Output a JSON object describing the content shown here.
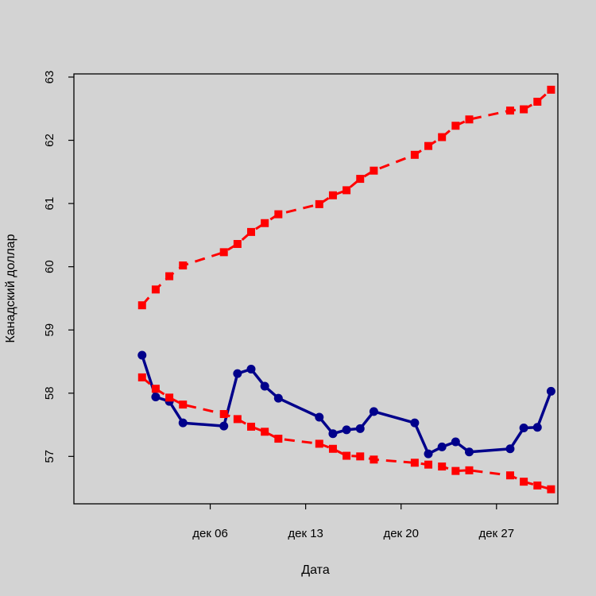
{
  "chart_data": {
    "type": "line",
    "xlabel": "Дата",
    "ylabel": "Канадский доллар",
    "x_ticks": [
      {
        "day": 6,
        "label": "дек 06"
      },
      {
        "day": 13,
        "label": "дек 13"
      },
      {
        "day": 20,
        "label": "дек 20"
      },
      {
        "day": 27,
        "label": "дек 27"
      }
    ],
    "y_ticks": [
      57,
      58,
      59,
      60,
      61,
      62,
      63
    ],
    "xlim": [
      -4.0,
      31.5
    ],
    "ylim": [
      56.25,
      63.05
    ],
    "grid": false,
    "legend": "none",
    "series": [
      {
        "role": "actual",
        "color": "#00008b",
        "style": "solid",
        "marker": "circle",
        "x": [
          1,
          2,
          3,
          4,
          7,
          8,
          9,
          10,
          11,
          14,
          15,
          16,
          17,
          18,
          21,
          22,
          23,
          24,
          25,
          28,
          29,
          30,
          31
        ],
        "y": [
          58.6,
          57.94,
          57.87,
          57.53,
          57.48,
          58.31,
          58.38,
          58.11,
          57.92,
          57.62,
          57.36,
          57.42,
          57.44,
          57.71,
          57.53,
          57.04,
          57.15,
          57.23,
          57.07,
          57.12,
          57.45,
          57.46,
          58.03
        ]
      },
      {
        "role": "upper",
        "color": "#ff0000",
        "style": "dashed",
        "marker": "square",
        "x": [
          1,
          2,
          3,
          4,
          7,
          8,
          9,
          10,
          11,
          14,
          15,
          16,
          17,
          18,
          21,
          22,
          23,
          24,
          25,
          28,
          29,
          30,
          31
        ],
        "y": [
          59.39,
          59.64,
          59.85,
          60.02,
          60.23,
          60.36,
          60.55,
          60.69,
          60.83,
          60.99,
          61.13,
          61.21,
          61.39,
          61.52,
          61.77,
          61.91,
          62.05,
          62.23,
          62.33,
          62.47,
          62.49,
          62.61,
          62.8
        ]
      },
      {
        "role": "lower",
        "color": "#ff0000",
        "style": "dashed",
        "marker": "square",
        "x": [
          1,
          2,
          3,
          4,
          7,
          8,
          9,
          10,
          11,
          14,
          15,
          16,
          17,
          18,
          21,
          22,
          23,
          24,
          25,
          28,
          29,
          30,
          31
        ],
        "y": [
          58.25,
          58.07,
          57.93,
          57.82,
          57.67,
          57.59,
          57.47,
          57.39,
          57.28,
          57.2,
          57.12,
          57.01,
          57.0,
          56.95,
          56.9,
          56.87,
          56.84,
          56.77,
          56.78,
          56.7,
          56.6,
          56.54,
          56.48
        ]
      }
    ]
  }
}
